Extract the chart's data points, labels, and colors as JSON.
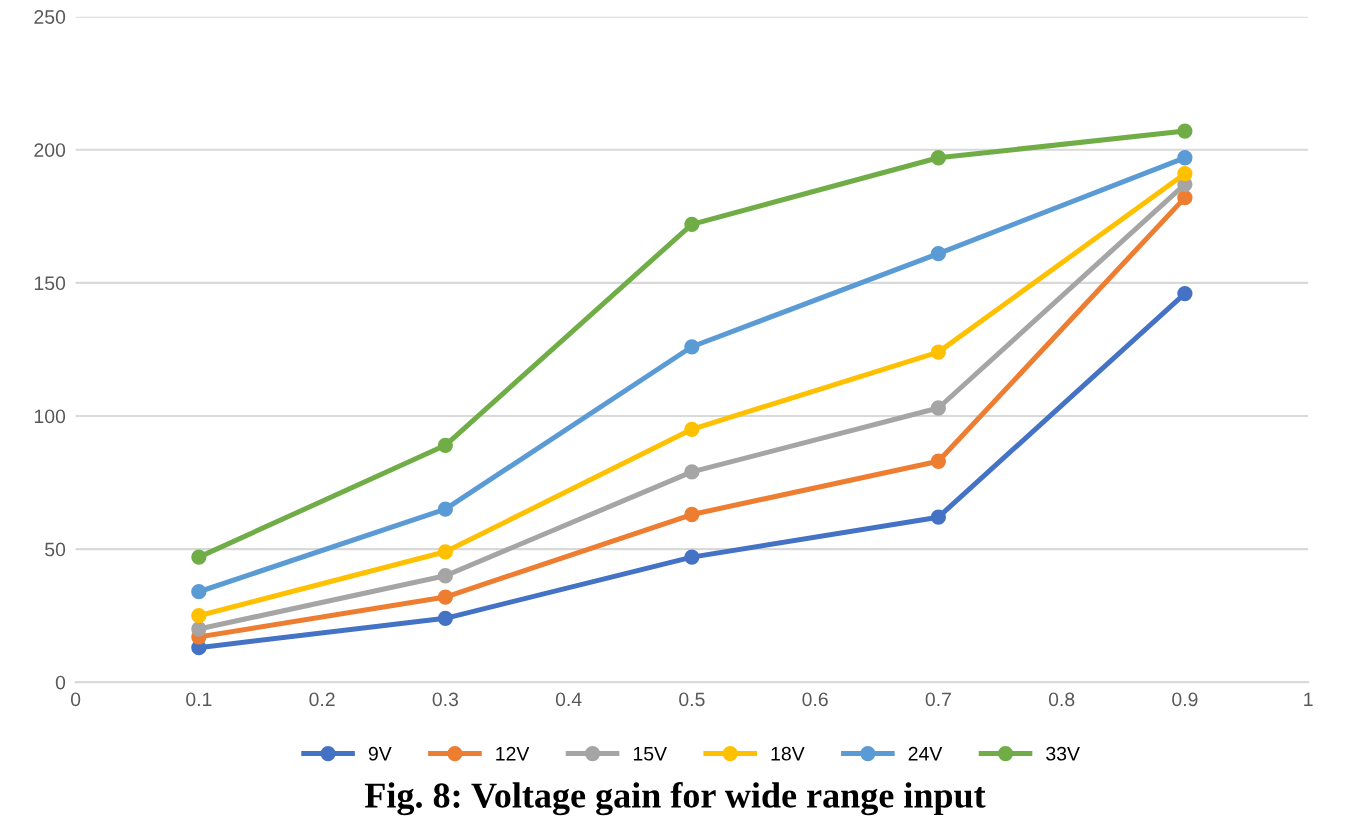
{
  "chart_data": {
    "type": "line",
    "title": "Fig. 8: Voltage gain for wide range input",
    "x": [
      0.1,
      0.3,
      0.5,
      0.7,
      0.9
    ],
    "series": [
      {
        "name": "9V",
        "color": "#4472c4",
        "values": [
          13,
          24,
          47,
          62,
          146
        ]
      },
      {
        "name": "12V",
        "color": "#ed7d31",
        "values": [
          17,
          32,
          63,
          83,
          182
        ]
      },
      {
        "name": "15V",
        "color": "#a5a5a5",
        "values": [
          20,
          40,
          79,
          103,
          187
        ]
      },
      {
        "name": "18V",
        "color": "#ffc000",
        "values": [
          25,
          49,
          95,
          124,
          191
        ]
      },
      {
        "name": "24V",
        "color": "#5b9bd5",
        "values": [
          34,
          65,
          126,
          161,
          197
        ]
      },
      {
        "name": "33V",
        "color": "#70ad47",
        "values": [
          47,
          89,
          172,
          197,
          207
        ]
      }
    ],
    "xlim": [
      0,
      1
    ],
    "xticks": [
      0,
      0.1,
      0.2,
      0.3,
      0.4,
      0.5,
      0.6,
      0.7,
      0.8,
      0.9,
      1
    ],
    "ylim": [
      0,
      250
    ],
    "yticks": [
      0,
      50,
      100,
      150,
      200,
      250
    ],
    "grid": "y",
    "legend": "bottom",
    "marker": "circle",
    "line_style": "solid"
  }
}
